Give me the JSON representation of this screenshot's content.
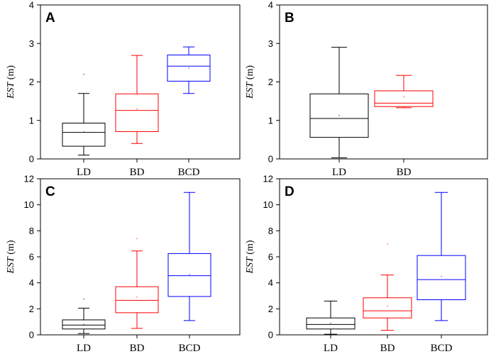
{
  "chart_data": [
    {
      "type": "box",
      "panel": "A",
      "ylabel_italic": "EST",
      "ylabel_unit": " (m)",
      "ylim": [
        0,
        4
      ],
      "yticks": [
        0,
        1,
        2,
        3,
        4
      ],
      "categories": [
        "LD",
        "BD",
        "BCD"
      ],
      "boxes": [
        {
          "category": "LD",
          "color": "#000000",
          "min": 0.1,
          "q1": 0.33,
          "median": 0.69,
          "q3": 0.93,
          "max": 1.7,
          "mean": 0.7,
          "outliers": [
            2.2
          ]
        },
        {
          "category": "BD",
          "color": "#ff0000",
          "min": 0.4,
          "q1": 0.71,
          "median": 1.26,
          "q3": 1.69,
          "max": 2.69,
          "mean": 1.3,
          "outliers": []
        },
        {
          "category": "BCD",
          "color": "#0000ff",
          "min": 1.7,
          "q1": 2.02,
          "median": 2.41,
          "q3": 2.7,
          "max": 2.91,
          "mean": 2.36,
          "outliers": []
        }
      ]
    },
    {
      "type": "box",
      "panel": "B",
      "ylabel_italic": "EST",
      "ylabel_unit": " (m)",
      "ylim": [
        0,
        4
      ],
      "yticks": [
        0,
        1,
        2,
        3,
        4
      ],
      "categories": [
        "LD",
        "BD"
      ],
      "boxes": [
        {
          "category": "LD",
          "color": "#000000",
          "min": 0.03,
          "q1": 0.56,
          "median": 1.05,
          "q3": 1.69,
          "max": 2.9,
          "mean": 1.13,
          "outliers": []
        },
        {
          "category": "BD",
          "color": "#ff0000",
          "min": 1.33,
          "q1": 1.36,
          "median": 1.45,
          "q3": 1.77,
          "max": 2.17,
          "mean": 1.61,
          "outliers": []
        }
      ]
    },
    {
      "type": "box",
      "panel": "C",
      "ylabel_italic": "EST",
      "ylabel_unit": " (m)",
      "ylim": [
        0,
        12
      ],
      "yticks": [
        0,
        2,
        4,
        6,
        8,
        10,
        12
      ],
      "categories": [
        "LD",
        "BD",
        "BCD"
      ],
      "boxes": [
        {
          "category": "LD",
          "color": "#000000",
          "min": 0.1,
          "q1": 0.45,
          "median": 0.75,
          "q3": 1.15,
          "max": 2.05,
          "mean": 0.8,
          "outliers": [
            2.75
          ]
        },
        {
          "category": "BD",
          "color": "#ff0000",
          "min": 0.5,
          "q1": 1.7,
          "median": 2.65,
          "q3": 3.7,
          "max": 6.45,
          "mean": 2.9,
          "outliers": [
            7.4
          ]
        },
        {
          "category": "BCD",
          "color": "#0000ff",
          "min": 1.1,
          "q1": 2.95,
          "median": 4.55,
          "q3": 6.25,
          "max": 10.95,
          "mean": 4.65,
          "outliers": []
        }
      ]
    },
    {
      "type": "box",
      "panel": "D",
      "ylabel_italic": "EST",
      "ylabel_unit": " (m)",
      "ylim": [
        0,
        12
      ],
      "yticks": [
        0,
        2,
        4,
        6,
        8,
        10,
        12
      ],
      "categories": [
        "LD",
        "BD",
        "BCD"
      ],
      "boxes": [
        {
          "category": "LD",
          "color": "#000000",
          "min": 0.05,
          "q1": 0.45,
          "median": 0.8,
          "q3": 1.3,
          "max": 2.6,
          "mean": 0.9,
          "outliers": []
        },
        {
          "category": "BD",
          "color": "#ff0000",
          "min": 0.35,
          "q1": 1.3,
          "median": 1.85,
          "q3": 2.85,
          "max": 4.6,
          "mean": 2.2,
          "outliers": [
            7.0
          ]
        },
        {
          "category": "BCD",
          "color": "#0000ff",
          "min": 1.1,
          "q1": 2.7,
          "median": 4.25,
          "q3": 6.1,
          "max": 10.95,
          "mean": 4.5,
          "outliers": []
        }
      ]
    }
  ]
}
